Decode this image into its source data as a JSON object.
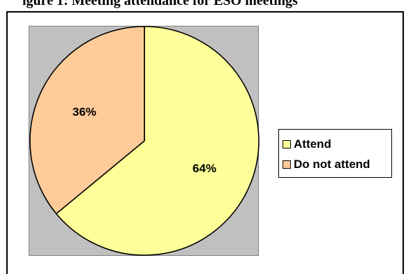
{
  "header": {
    "title_fragment": "igure 1: Meeting attendance for ESO meetings"
  },
  "colors": {
    "attend": "#ffff99",
    "do_not_attend": "#ffcc99",
    "plot_background": "#c0c0c0",
    "outline": "#000000"
  },
  "chart_data": {
    "type": "pie",
    "title": "",
    "slices": [
      {
        "name": "Attend",
        "value": 64,
        "label": "64%",
        "color": "#ffff99"
      },
      {
        "name": "Do not attend",
        "value": 36,
        "label": "36%",
        "color": "#ffcc99"
      }
    ],
    "start_angle_deg": 0,
    "direction": "clockwise",
    "legend": {
      "placement": "right",
      "items": [
        "Attend",
        "Do not attend"
      ]
    }
  }
}
